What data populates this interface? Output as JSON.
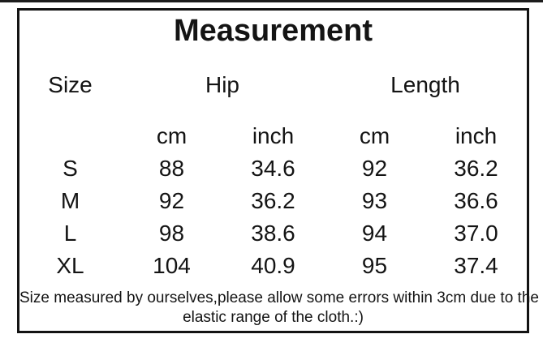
{
  "title": "Measurement",
  "table": {
    "col_size_label": "Size",
    "col_hip_label": "Hip",
    "col_length_label": "Length",
    "unit_cm": "cm",
    "unit_inch": "inch",
    "rows": [
      {
        "size": "S",
        "hip_cm": "88",
        "hip_inch": "34.6",
        "len_cm": "92",
        "len_inch": "36.2"
      },
      {
        "size": "M",
        "hip_cm": "92",
        "hip_inch": "36.2",
        "len_cm": "93",
        "len_inch": "36.6"
      },
      {
        "size": "L",
        "hip_cm": "98",
        "hip_inch": "38.6",
        "len_cm": "94",
        "len_inch": "37.0"
      },
      {
        "size": "XL",
        "hip_cm": "104",
        "hip_inch": "40.9",
        "len_cm": "95",
        "len_inch": "37.4"
      }
    ]
  },
  "footnote": {
    "line1": "Size measured by ourselves,please allow some errors within 3cm due to the",
    "line2": "elastic range of the cloth.:)"
  },
  "colors": {
    "text": "#141414",
    "border": "#131313",
    "background": "#ffffff"
  },
  "chart_data": {
    "type": "table",
    "title": "Measurement",
    "columns": [
      "Size",
      "Hip cm",
      "Hip inch",
      "Length cm",
      "Length inch"
    ],
    "rows": [
      [
        "S",
        "88",
        "34.6",
        "92",
        "36.2"
      ],
      [
        "M",
        "92",
        "36.2",
        "93",
        "36.6"
      ],
      [
        "L",
        "98",
        "38.6",
        "94",
        "37.0"
      ],
      [
        "XL",
        "104",
        "40.9",
        "95",
        "37.4"
      ]
    ],
    "footnote": "Size measured by ourselves,please allow some errors within 3cm due to the elastic range of the cloth.:)"
  }
}
